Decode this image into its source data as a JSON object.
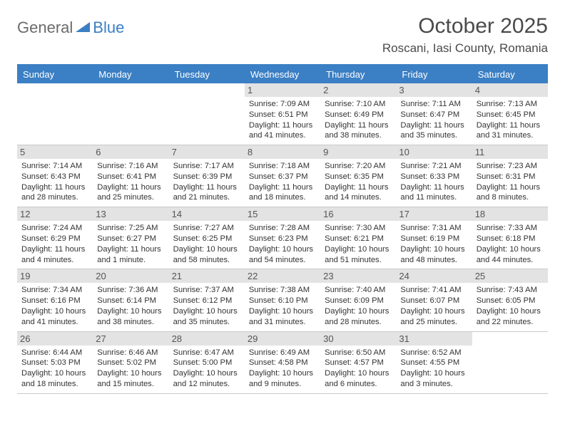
{
  "logo": {
    "general": "General",
    "blue": "Blue"
  },
  "title": "October 2025",
  "location": "Roscani, Iasi County, Romania",
  "accent_color": "#3b7fc4",
  "day_headers": [
    "Sunday",
    "Monday",
    "Tuesday",
    "Wednesday",
    "Thursday",
    "Friday",
    "Saturday"
  ],
  "weeks": [
    [
      {
        "blank": true
      },
      {
        "blank": true
      },
      {
        "blank": true
      },
      {
        "day": "1",
        "sunrise": "Sunrise: 7:09 AM",
        "sunset": "Sunset: 6:51 PM",
        "daylight1": "Daylight: 11 hours",
        "daylight2": "and 41 minutes."
      },
      {
        "day": "2",
        "sunrise": "Sunrise: 7:10 AM",
        "sunset": "Sunset: 6:49 PM",
        "daylight1": "Daylight: 11 hours",
        "daylight2": "and 38 minutes."
      },
      {
        "day": "3",
        "sunrise": "Sunrise: 7:11 AM",
        "sunset": "Sunset: 6:47 PM",
        "daylight1": "Daylight: 11 hours",
        "daylight2": "and 35 minutes."
      },
      {
        "day": "4",
        "sunrise": "Sunrise: 7:13 AM",
        "sunset": "Sunset: 6:45 PM",
        "daylight1": "Daylight: 11 hours",
        "daylight2": "and 31 minutes."
      }
    ],
    [
      {
        "day": "5",
        "sunrise": "Sunrise: 7:14 AM",
        "sunset": "Sunset: 6:43 PM",
        "daylight1": "Daylight: 11 hours",
        "daylight2": "and 28 minutes."
      },
      {
        "day": "6",
        "sunrise": "Sunrise: 7:16 AM",
        "sunset": "Sunset: 6:41 PM",
        "daylight1": "Daylight: 11 hours",
        "daylight2": "and 25 minutes."
      },
      {
        "day": "7",
        "sunrise": "Sunrise: 7:17 AM",
        "sunset": "Sunset: 6:39 PM",
        "daylight1": "Daylight: 11 hours",
        "daylight2": "and 21 minutes."
      },
      {
        "day": "8",
        "sunrise": "Sunrise: 7:18 AM",
        "sunset": "Sunset: 6:37 PM",
        "daylight1": "Daylight: 11 hours",
        "daylight2": "and 18 minutes."
      },
      {
        "day": "9",
        "sunrise": "Sunrise: 7:20 AM",
        "sunset": "Sunset: 6:35 PM",
        "daylight1": "Daylight: 11 hours",
        "daylight2": "and 14 minutes."
      },
      {
        "day": "10",
        "sunrise": "Sunrise: 7:21 AM",
        "sunset": "Sunset: 6:33 PM",
        "daylight1": "Daylight: 11 hours",
        "daylight2": "and 11 minutes."
      },
      {
        "day": "11",
        "sunrise": "Sunrise: 7:23 AM",
        "sunset": "Sunset: 6:31 PM",
        "daylight1": "Daylight: 11 hours",
        "daylight2": "and 8 minutes."
      }
    ],
    [
      {
        "day": "12",
        "sunrise": "Sunrise: 7:24 AM",
        "sunset": "Sunset: 6:29 PM",
        "daylight1": "Daylight: 11 hours",
        "daylight2": "and 4 minutes."
      },
      {
        "day": "13",
        "sunrise": "Sunrise: 7:25 AM",
        "sunset": "Sunset: 6:27 PM",
        "daylight1": "Daylight: 11 hours",
        "daylight2": "and 1 minute."
      },
      {
        "day": "14",
        "sunrise": "Sunrise: 7:27 AM",
        "sunset": "Sunset: 6:25 PM",
        "daylight1": "Daylight: 10 hours",
        "daylight2": "and 58 minutes."
      },
      {
        "day": "15",
        "sunrise": "Sunrise: 7:28 AM",
        "sunset": "Sunset: 6:23 PM",
        "daylight1": "Daylight: 10 hours",
        "daylight2": "and 54 minutes."
      },
      {
        "day": "16",
        "sunrise": "Sunrise: 7:30 AM",
        "sunset": "Sunset: 6:21 PM",
        "daylight1": "Daylight: 10 hours",
        "daylight2": "and 51 minutes."
      },
      {
        "day": "17",
        "sunrise": "Sunrise: 7:31 AM",
        "sunset": "Sunset: 6:19 PM",
        "daylight1": "Daylight: 10 hours",
        "daylight2": "and 48 minutes."
      },
      {
        "day": "18",
        "sunrise": "Sunrise: 7:33 AM",
        "sunset": "Sunset: 6:18 PM",
        "daylight1": "Daylight: 10 hours",
        "daylight2": "and 44 minutes."
      }
    ],
    [
      {
        "day": "19",
        "sunrise": "Sunrise: 7:34 AM",
        "sunset": "Sunset: 6:16 PM",
        "daylight1": "Daylight: 10 hours",
        "daylight2": "and 41 minutes."
      },
      {
        "day": "20",
        "sunrise": "Sunrise: 7:36 AM",
        "sunset": "Sunset: 6:14 PM",
        "daylight1": "Daylight: 10 hours",
        "daylight2": "and 38 minutes."
      },
      {
        "day": "21",
        "sunrise": "Sunrise: 7:37 AM",
        "sunset": "Sunset: 6:12 PM",
        "daylight1": "Daylight: 10 hours",
        "daylight2": "and 35 minutes."
      },
      {
        "day": "22",
        "sunrise": "Sunrise: 7:38 AM",
        "sunset": "Sunset: 6:10 PM",
        "daylight1": "Daylight: 10 hours",
        "daylight2": "and 31 minutes."
      },
      {
        "day": "23",
        "sunrise": "Sunrise: 7:40 AM",
        "sunset": "Sunset: 6:09 PM",
        "daylight1": "Daylight: 10 hours",
        "daylight2": "and 28 minutes."
      },
      {
        "day": "24",
        "sunrise": "Sunrise: 7:41 AM",
        "sunset": "Sunset: 6:07 PM",
        "daylight1": "Daylight: 10 hours",
        "daylight2": "and 25 minutes."
      },
      {
        "day": "25",
        "sunrise": "Sunrise: 7:43 AM",
        "sunset": "Sunset: 6:05 PM",
        "daylight1": "Daylight: 10 hours",
        "daylight2": "and 22 minutes."
      }
    ],
    [
      {
        "day": "26",
        "sunrise": "Sunrise: 6:44 AM",
        "sunset": "Sunset: 5:03 PM",
        "daylight1": "Daylight: 10 hours",
        "daylight2": "and 18 minutes."
      },
      {
        "day": "27",
        "sunrise": "Sunrise: 6:46 AM",
        "sunset": "Sunset: 5:02 PM",
        "daylight1": "Daylight: 10 hours",
        "daylight2": "and 15 minutes."
      },
      {
        "day": "28",
        "sunrise": "Sunrise: 6:47 AM",
        "sunset": "Sunset: 5:00 PM",
        "daylight1": "Daylight: 10 hours",
        "daylight2": "and 12 minutes."
      },
      {
        "day": "29",
        "sunrise": "Sunrise: 6:49 AM",
        "sunset": "Sunset: 4:58 PM",
        "daylight1": "Daylight: 10 hours",
        "daylight2": "and 9 minutes."
      },
      {
        "day": "30",
        "sunrise": "Sunrise: 6:50 AM",
        "sunset": "Sunset: 4:57 PM",
        "daylight1": "Daylight: 10 hours",
        "daylight2": "and 6 minutes."
      },
      {
        "day": "31",
        "sunrise": "Sunrise: 6:52 AM",
        "sunset": "Sunset: 4:55 PM",
        "daylight1": "Daylight: 10 hours",
        "daylight2": "and 3 minutes."
      },
      {
        "blank": true
      }
    ]
  ]
}
